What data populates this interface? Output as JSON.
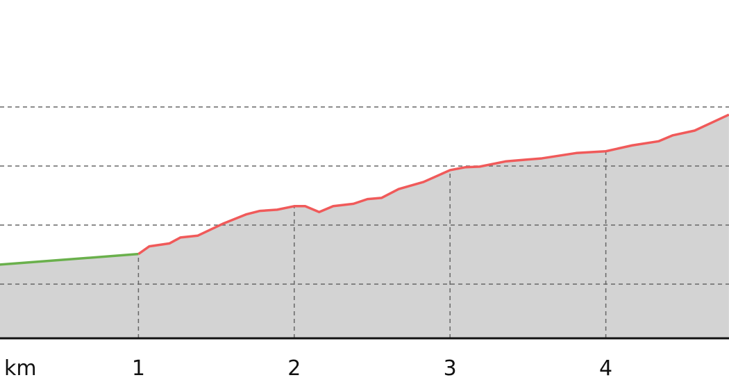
{
  "chart_data": {
    "type": "area",
    "title": "",
    "xlabel": "km",
    "ylabel": "",
    "x_ticks": [
      "1",
      "2",
      "3",
      "4"
    ],
    "x_tick_values": [
      1,
      2,
      3,
      4
    ],
    "xlim": [
      0.11,
      4.79
    ],
    "y_gridlines": [
      1,
      2,
      3,
      4
    ],
    "ylim": [
      0.08,
      4.6
    ],
    "grid": true,
    "fill_color": "#d3d3d3",
    "series": [
      {
        "color": "#6ab04c",
        "x": [
          0.11,
          1.0
        ],
        "y": [
          1.33,
          1.51
        ]
      },
      {
        "color": "#f05a5a",
        "x": [
          1.0,
          1.07,
          1.2,
          1.27,
          1.38,
          1.54,
          1.69,
          1.78,
          1.89,
          2.0,
          2.07,
          2.16,
          2.25,
          2.38,
          2.47,
          2.56,
          2.67,
          2.83,
          3.0,
          3.1,
          3.19,
          3.36,
          3.59,
          3.81,
          4.0,
          4.17,
          4.34,
          4.43,
          4.57,
          4.79
        ],
        "y": [
          1.51,
          1.64,
          1.69,
          1.79,
          1.82,
          2.02,
          2.18,
          2.24,
          2.26,
          2.32,
          2.32,
          2.22,
          2.32,
          2.36,
          2.44,
          2.46,
          2.61,
          2.73,
          2.93,
          2.98,
          2.99,
          3.08,
          3.13,
          3.22,
          3.25,
          3.35,
          3.42,
          3.52,
          3.6,
          3.87
        ]
      }
    ]
  }
}
